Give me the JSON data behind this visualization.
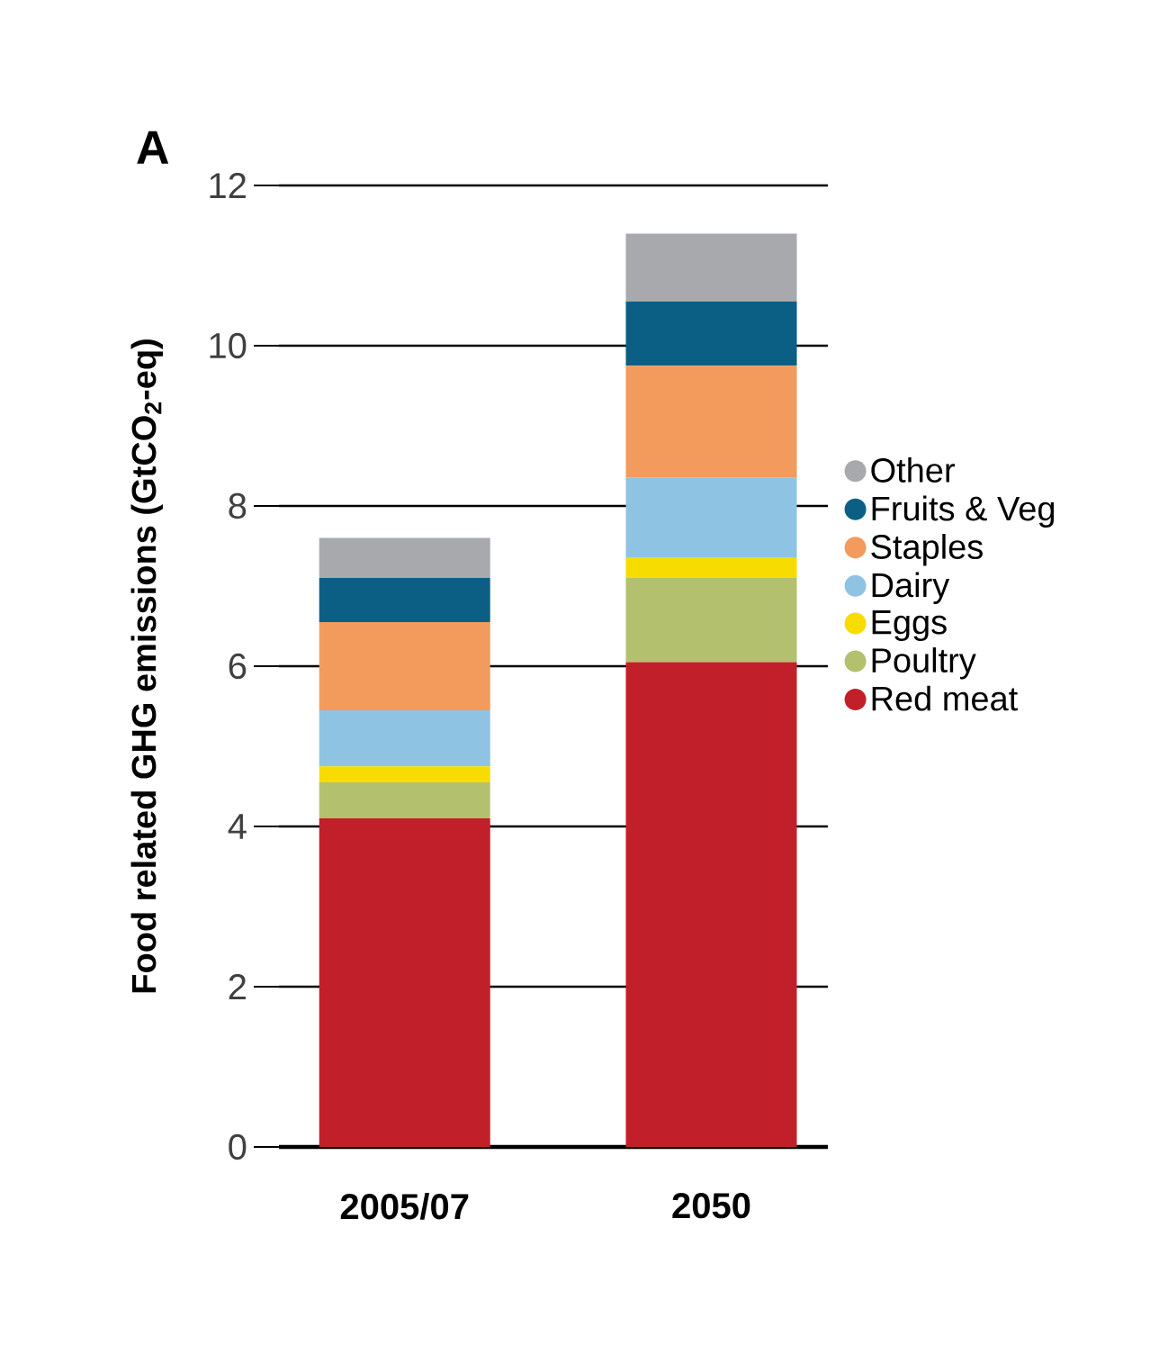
{
  "chart_data": {
    "type": "bar",
    "title": "A",
    "ylabel": "Food related GHG emissions (GtCO$_{2}$-eq)",
    "categories": [
      "2005/07",
      "2050"
    ],
    "stacked": true,
    "series": [
      {
        "name": "Red meat",
        "color": "#c1202a",
        "values": [
          4.1,
          6.05
        ]
      },
      {
        "name": "Poultry",
        "color": "#b3c16f",
        "values": [
          0.45,
          1.05
        ]
      },
      {
        "name": "Eggs",
        "color": "#f7dc00",
        "values": [
          0.2,
          0.25
        ]
      },
      {
        "name": "Dairy",
        "color": "#8fc3e4",
        "values": [
          0.7,
          1.0
        ]
      },
      {
        "name": "Staples",
        "color": "#f29b5c",
        "values": [
          1.1,
          1.4
        ]
      },
      {
        "name": "Fruits & Veg",
        "color": "#0b5f84",
        "values": [
          0.55,
          0.8
        ]
      },
      {
        "name": "Other",
        "color": "#a7a9ac",
        "values": [
          0.5,
          0.85
        ]
      }
    ],
    "ylim": [
      0,
      12
    ],
    "yticks": [
      0,
      2,
      4,
      6,
      8,
      10,
      12
    ],
    "grid": "y",
    "legend": "right"
  }
}
